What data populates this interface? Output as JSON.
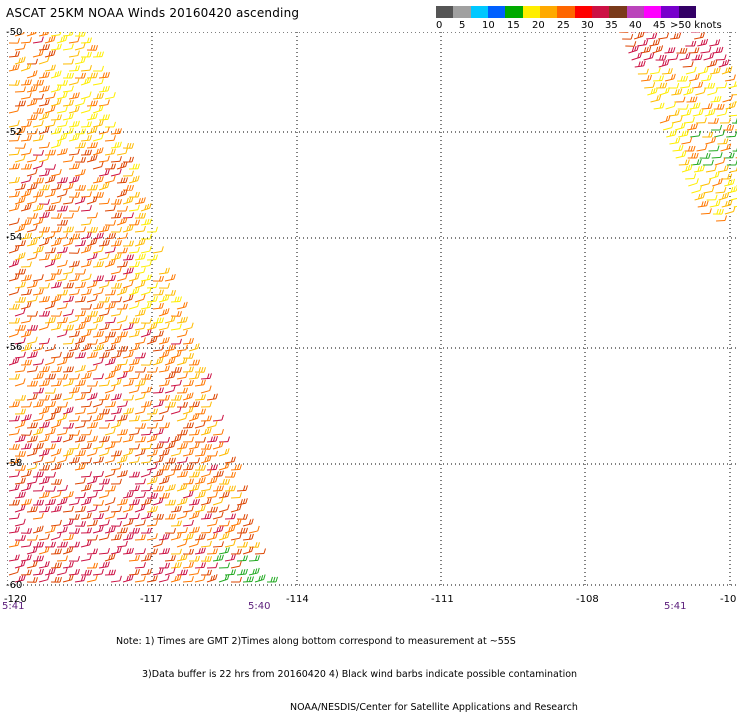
{
  "header": {
    "title": "ASCAT 25KM NOAA Winds 20160420 ascending"
  },
  "legend": {
    "colors": [
      "#555555",
      "#a0a0a0",
      "#00c8ff",
      "#0060ff",
      "#00aa00",
      "#ffee00",
      "#ffaa00",
      "#ff6600",
      "#ff0000",
      "#cc1144",
      "#7a3a1a",
      "#bb44bb",
      "#ff00ff",
      "#7700cc",
      "#330066"
    ],
    "labels": [
      "0",
      "5",
      "10",
      "15",
      "20",
      "25",
      "30",
      "35",
      "40",
      "45",
      ">50 knots"
    ]
  },
  "map": {
    "lat_labels": [
      "-50",
      "-52",
      "-54",
      "-56",
      "-58",
      "-60"
    ],
    "lon_labels": [
      "-120",
      "-117",
      "-114",
      "-111",
      "-108",
      "-10"
    ],
    "time_labels": [
      "5:41",
      "5:40",
      "5:41"
    ],
    "barb_colors": {
      "weak": "#22aa22",
      "light": "#ffee00",
      "medium": "#ffbb00",
      "strong": "#ff7700",
      "stronger": "#dd4400",
      "strongest": "#cc1144"
    }
  },
  "footer": {
    "note_line1": "Note: 1) Times are GMT 2)Times along bottom correspond to measurement at ~55S",
    "note_line2": "3)Data buffer is 22 hrs from 20160420 4) Black wind barbs indicate possible contamination",
    "note_line3": "NOAA/NESDIS/Center for Satellite Applications and Research"
  }
}
